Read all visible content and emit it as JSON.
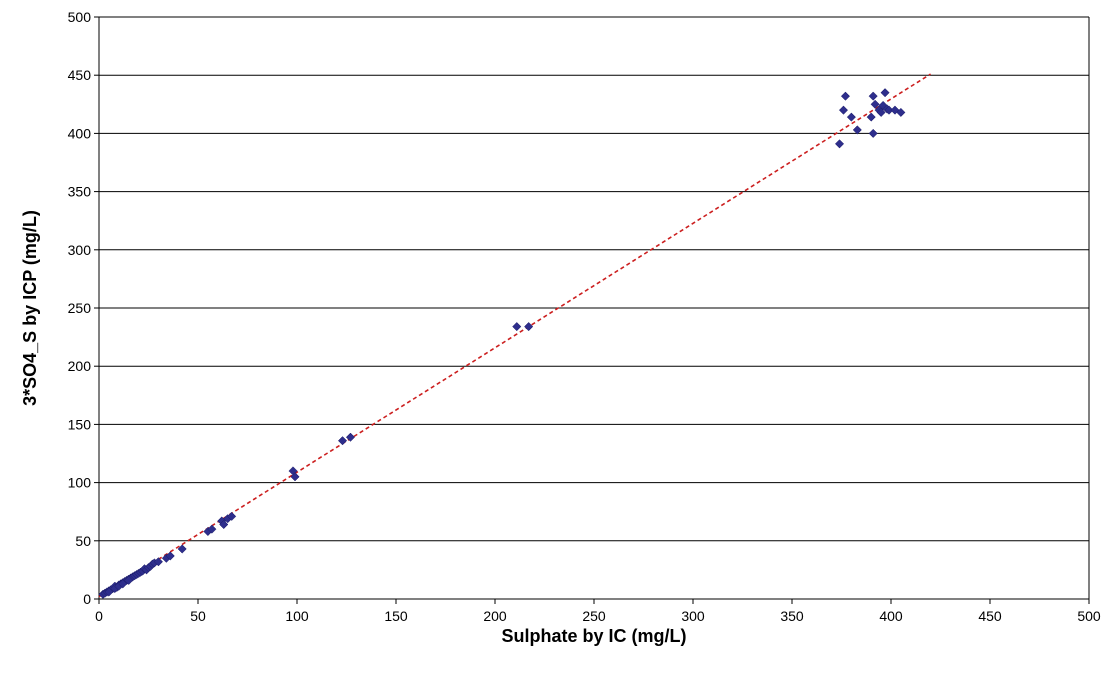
{
  "chart_data": {
    "type": "scatter",
    "title": "",
    "xlabel": "Sulphate by IC (mg/L)",
    "ylabel": "3*SO4_S by ICP (mg/L)",
    "xlim": [
      0,
      500
    ],
    "ylim": [
      0,
      500
    ],
    "x_ticks": [
      0,
      50,
      100,
      150,
      200,
      250,
      300,
      350,
      400,
      450,
      500
    ],
    "y_ticks": [
      0,
      50,
      100,
      150,
      200,
      250,
      300,
      350,
      400,
      450,
      500
    ],
    "grid": "horizontal",
    "legend": "none",
    "marker_color": "#2e2e8c",
    "trendline_color": "#cc1f1f",
    "trendline": {
      "x": [
        0,
        420
      ],
      "y": [
        2,
        451
      ]
    },
    "series": [
      {
        "marker": "diamond",
        "points": [
          [
            2,
            4
          ],
          [
            3,
            5
          ],
          [
            4,
            6
          ],
          [
            5,
            7
          ],
          [
            6,
            8
          ],
          [
            7,
            9
          ],
          [
            8,
            11
          ],
          [
            9,
            10
          ],
          [
            10,
            12
          ],
          [
            11,
            13
          ],
          [
            12,
            14
          ],
          [
            13,
            15
          ],
          [
            14,
            16
          ],
          [
            15,
            17
          ],
          [
            16,
            18
          ],
          [
            17,
            19
          ],
          [
            18,
            20
          ],
          [
            19,
            21
          ],
          [
            20,
            22
          ],
          [
            21,
            23
          ],
          [
            22,
            24
          ],
          [
            23,
            26
          ],
          [
            24,
            25
          ],
          [
            25,
            27
          ],
          [
            26,
            28
          ],
          [
            27,
            30
          ],
          [
            28,
            31
          ],
          [
            30,
            32
          ],
          [
            8,
            9
          ],
          [
            10,
            11
          ],
          [
            12,
            13
          ],
          [
            15,
            16
          ],
          [
            5,
            6
          ],
          [
            34,
            35
          ],
          [
            36,
            37
          ],
          [
            42,
            43
          ],
          [
            55,
            58
          ],
          [
            57,
            60
          ],
          [
            62,
            67
          ],
          [
            63,
            64
          ],
          [
            65,
            69
          ],
          [
            67,
            71
          ],
          [
            98,
            110
          ],
          [
            99,
            105
          ],
          [
            123,
            136
          ],
          [
            127,
            139
          ],
          [
            211,
            234
          ],
          [
            217,
            234
          ],
          [
            374,
            391
          ],
          [
            376,
            420
          ],
          [
            377,
            432
          ],
          [
            380,
            414
          ],
          [
            383,
            403
          ],
          [
            390,
            414
          ],
          [
            391,
            432
          ],
          [
            391,
            400
          ],
          [
            392,
            425
          ],
          [
            394,
            420
          ],
          [
            395,
            418
          ],
          [
            396,
            424
          ],
          [
            397,
            435
          ],
          [
            398,
            421
          ],
          [
            399,
            420
          ],
          [
            402,
            420
          ],
          [
            405,
            418
          ]
        ]
      }
    ]
  }
}
